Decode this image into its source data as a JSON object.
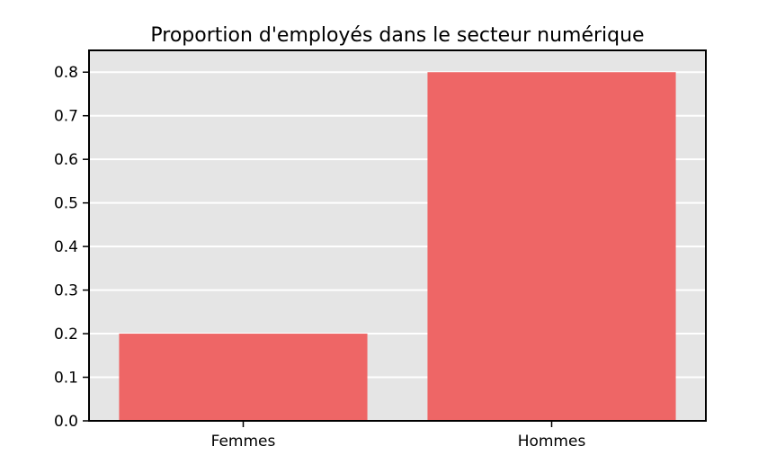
{
  "chart_data": {
    "type": "bar",
    "title": "Proportion d'employés dans le secteur numérique",
    "xlabel": "",
    "ylabel": "",
    "categories": [
      "Femmes",
      "Hommes"
    ],
    "values": [
      0.2,
      0.8
    ],
    "ylim": [
      0,
      0.85
    ],
    "yticks": [
      "0.0",
      "0.1",
      "0.2",
      "0.3",
      "0.4",
      "0.5",
      "0.6",
      "0.7",
      "0.8"
    ],
    "grid": "on (horizontal, white)",
    "legend": "none",
    "colors": {
      "bar": "#ee6666",
      "plot_background": "#e5e5e5",
      "grid": "#ffffff",
      "axis": "#000000"
    }
  }
}
